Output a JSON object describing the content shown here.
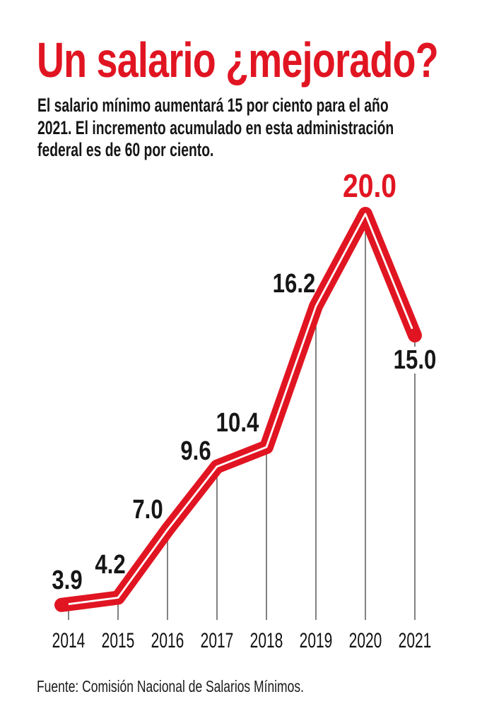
{
  "title": "Un salario ¿mejorado?",
  "subtitle_lines": [
    "El salario mínimo aumentará 15 por ciento para el año",
    "2021. El incremento acumulado en esta administración",
    "federal es de 60 por ciento."
  ],
  "source": "Fuente: Comisión Nacional de Salarios Mínimos.",
  "colors": {
    "accent": "#e11522",
    "text": "#161616",
    "tick_line": "#4d4d4d",
    "line_inner": "#ffffff",
    "background": "#ffffff"
  },
  "chart_data": {
    "type": "line",
    "title": "Un salario ¿mejorado?",
    "categories": [
      "2014",
      "2015",
      "2016",
      "2017",
      "2018",
      "2019",
      "2020",
      "2021"
    ],
    "values": [
      3.9,
      4.2,
      7.0,
      9.6,
      10.4,
      16.2,
      20.0,
      15.0
    ],
    "value_labels": [
      "3.9",
      "4.2",
      "7.0",
      "9.6",
      "10.4",
      "16.2",
      "20.0",
      "15.0"
    ],
    "highlight": {
      "index": 6,
      "label": "20.0"
    },
    "xlabel": "",
    "ylabel": "",
    "ylim": [
      3.3,
      20.0
    ],
    "grid": "vertical drop lines from each point to baseline, no axis line",
    "legend": "none",
    "line_style": "thick red stroke with thin white inner stroke, rounded caps and joins"
  }
}
